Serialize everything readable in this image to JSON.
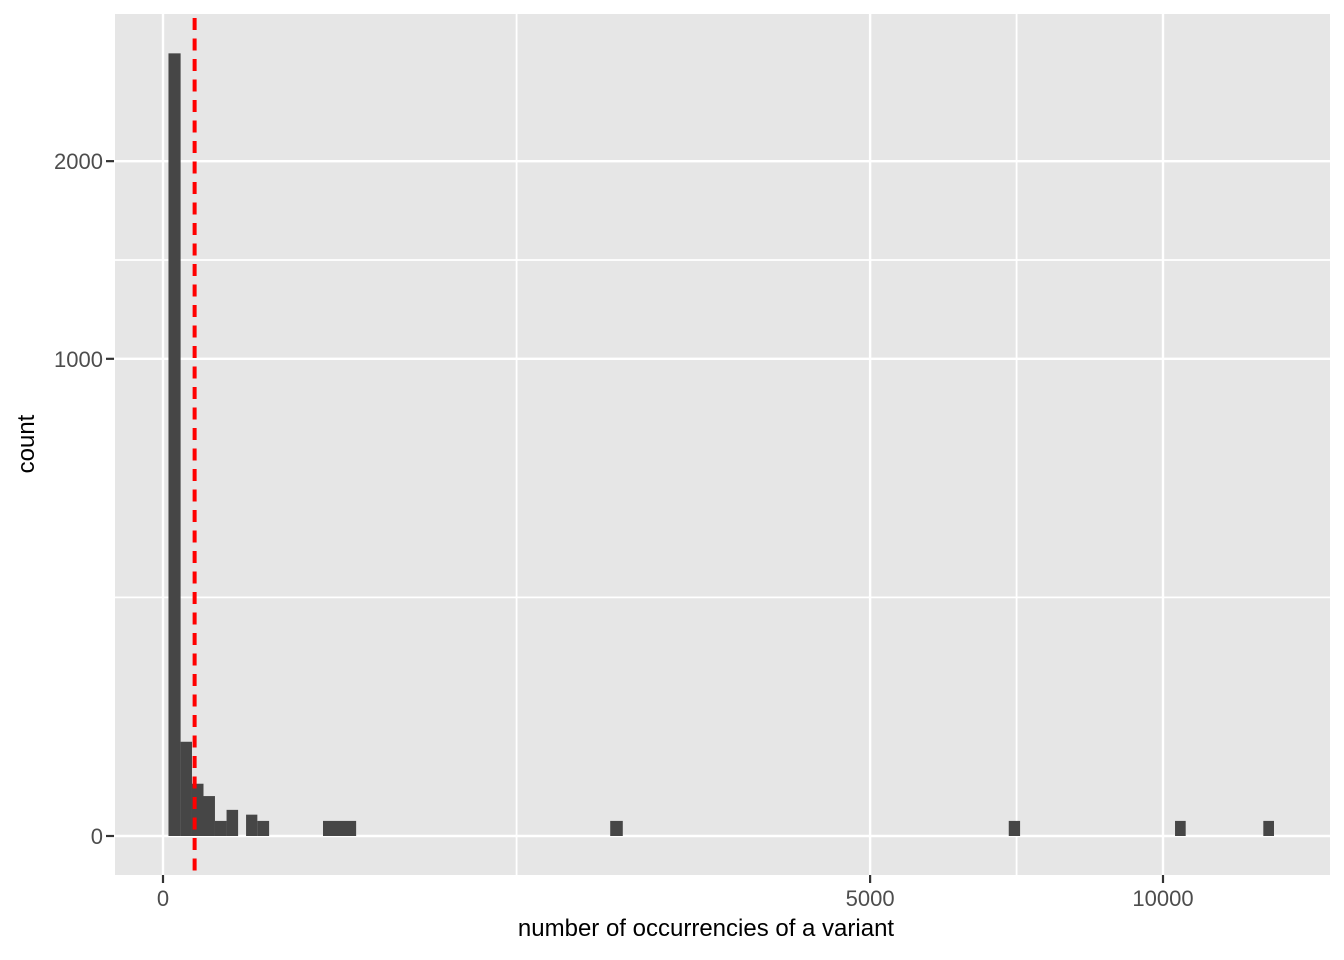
{
  "chart_data": {
    "type": "bar",
    "subtype": "histogram",
    "title": "",
    "xlabel": "number of occurrencies of a variant",
    "ylabel": "count",
    "x_scale": "sqrt",
    "y_scale": "sqrt",
    "xlim": [
      0,
      13600
    ],
    "ylim": [
      0,
      2970
    ],
    "x_ticks": [
      0,
      5000,
      10000
    ],
    "x_tick_labels": [
      "0",
      "5000",
      "10000"
    ],
    "x_minor_breaks": [
      1250,
      7286
    ],
    "y_ticks": [
      0,
      1000,
      2000
    ],
    "y_tick_labels": [
      "0",
      "1000",
      "2000"
    ],
    "y_minor_breaks": [
      250,
      1457
    ],
    "grid": "on",
    "legend": "none",
    "bins": [
      {
        "from": 0.3,
        "to": 3.1,
        "count": 2690
      },
      {
        "from": 3.1,
        "to": 8.4,
        "count": 39
      },
      {
        "from": 8.4,
        "to": 16.4,
        "count": 12
      },
      {
        "from": 16.4,
        "to": 27,
        "count": 7
      },
      {
        "from": 27,
        "to": 40.4,
        "count": 1
      },
      {
        "from": 40.4,
        "to": 56.4,
        "count": 3
      },
      {
        "from": 69,
        "to": 89,
        "count": 2
      },
      {
        "from": 89,
        "to": 112.6,
        "count": 1
      },
      {
        "from": 256,
        "to": 373,
        "count": 1
      },
      {
        "from": 2000,
        "to": 2114,
        "count": 1
      },
      {
        "from": 7153,
        "to": 7346,
        "count": 1
      },
      {
        "from": 10242,
        "to": 10459,
        "count": 1
      },
      {
        "from": 12107,
        "to": 12343,
        "count": 1
      }
    ],
    "vline": {
      "x": 10,
      "style": "dashed",
      "color": "#FF0000"
    },
    "colors": {
      "bar": "#464646",
      "panel_bg": "#E6E6E6",
      "grid": "#FFFFFF",
      "tick_mark": "#333333",
      "tick_label": "#4D4D4D",
      "axis_title": "#000000",
      "outer_bg": "#FFFFFF"
    }
  }
}
